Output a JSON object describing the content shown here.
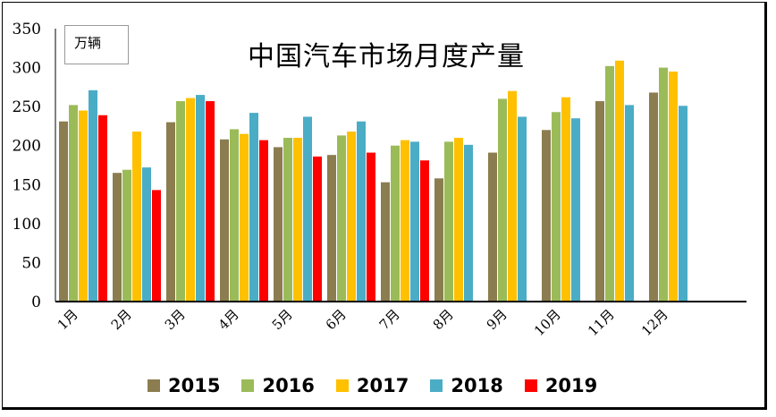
{
  "chart_data": {
    "type": "bar",
    "title": "中国汽车市场月度产量",
    "unit_label": "万辆",
    "categories": [
      "1月",
      "2月",
      "3月",
      "4月",
      "5月",
      "6月",
      "7月",
      "8月",
      "9月",
      "10月",
      "11月",
      "12月"
    ],
    "ylim": [
      0,
      350
    ],
    "yticks": [
      0,
      50,
      100,
      150,
      200,
      250,
      300,
      350
    ],
    "grid": false,
    "legend_position": "bottom",
    "series": [
      {
        "name": "2015",
        "color": "#8B7D4F",
        "values": [
          231,
          165,
          230,
          208,
          198,
          188,
          153,
          158,
          191,
          220,
          257,
          268
        ]
      },
      {
        "name": "2016",
        "color": "#9BBB59",
        "values": [
          252,
          169,
          257,
          221,
          210,
          213,
          200,
          205,
          260,
          243,
          302,
          300
        ]
      },
      {
        "name": "2017",
        "color": "#FFC000",
        "values": [
          245,
          218,
          261,
          215,
          210,
          218,
          207,
          210,
          270,
          262,
          309,
          295
        ]
      },
      {
        "name": "2018",
        "color": "#4BACC6",
        "values": [
          271,
          172,
          265,
          242,
          237,
          231,
          205,
          201,
          237,
          235,
          252,
          251
        ]
      },
      {
        "name": "2019",
        "color": "#FF0000",
        "values": [
          239,
          143,
          257,
          207,
          186,
          191,
          181,
          null,
          null,
          null,
          null,
          null
        ]
      }
    ]
  }
}
